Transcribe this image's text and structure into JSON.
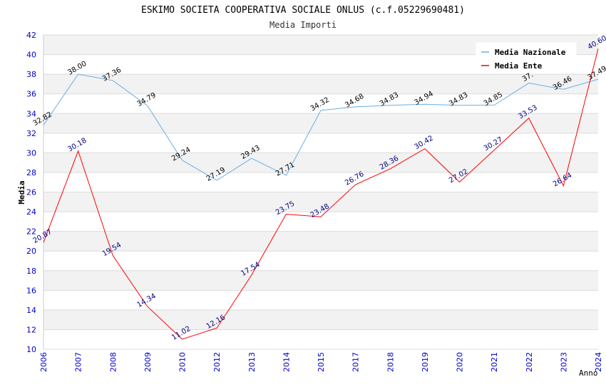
{
  "chart_data": {
    "type": "line",
    "title": "ESKIMO SOCIETA COOPERATIVA SOCIALE ONLUS (c.f.05229690481)",
    "subtitle": "Media Importi",
    "xlabel": "Anno",
    "ylabel": "Media",
    "ylim": [
      10,
      42
    ],
    "ytick_step": 2,
    "grid": true,
    "legend_position": "top-right",
    "categories": [
      "2006",
      "2007",
      "2008",
      "2009",
      "2010",
      "2012",
      "2013",
      "2014",
      "2015",
      "2017",
      "2018",
      "2019",
      "2020",
      "2021",
      "2022",
      "2023",
      "2024"
    ],
    "series": [
      {
        "name": "Media Nazionale",
        "color": "#6aaee6",
        "label_color": "#000000",
        "values": [
          32.82,
          38.0,
          37.36,
          34.79,
          29.24,
          27.19,
          29.43,
          27.71,
          34.32,
          34.68,
          34.83,
          34.94,
          34.83,
          34.85,
          37.1,
          36.46,
          37.49
        ],
        "labels": [
          "32.82",
          "38.00",
          "37.36",
          "34.79",
          "29.24",
          "27.19",
          "29.43",
          "27.71",
          "34.32",
          "34.68",
          "34.83",
          "34.94",
          "34.83",
          "34.85",
          "37.",
          "36.46",
          "37.49"
        ]
      },
      {
        "name": "Media Ente",
        "color": "#ff0000",
        "label_color": "#000080",
        "values": [
          20.87,
          30.18,
          19.54,
          14.34,
          11.02,
          12.16,
          17.54,
          23.75,
          23.48,
          26.76,
          28.36,
          30.42,
          27.02,
          30.27,
          33.53,
          26.64,
          40.6
        ],
        "labels": [
          "20.87",
          "30.18",
          "19.54",
          "14.34",
          "11.02",
          "12.16",
          "17.54",
          "23.75",
          "23.48",
          "26.76",
          "28.36",
          "30.42",
          "27.02",
          "30.27",
          "33.53",
          "26.64",
          "40.60"
        ]
      }
    ]
  }
}
